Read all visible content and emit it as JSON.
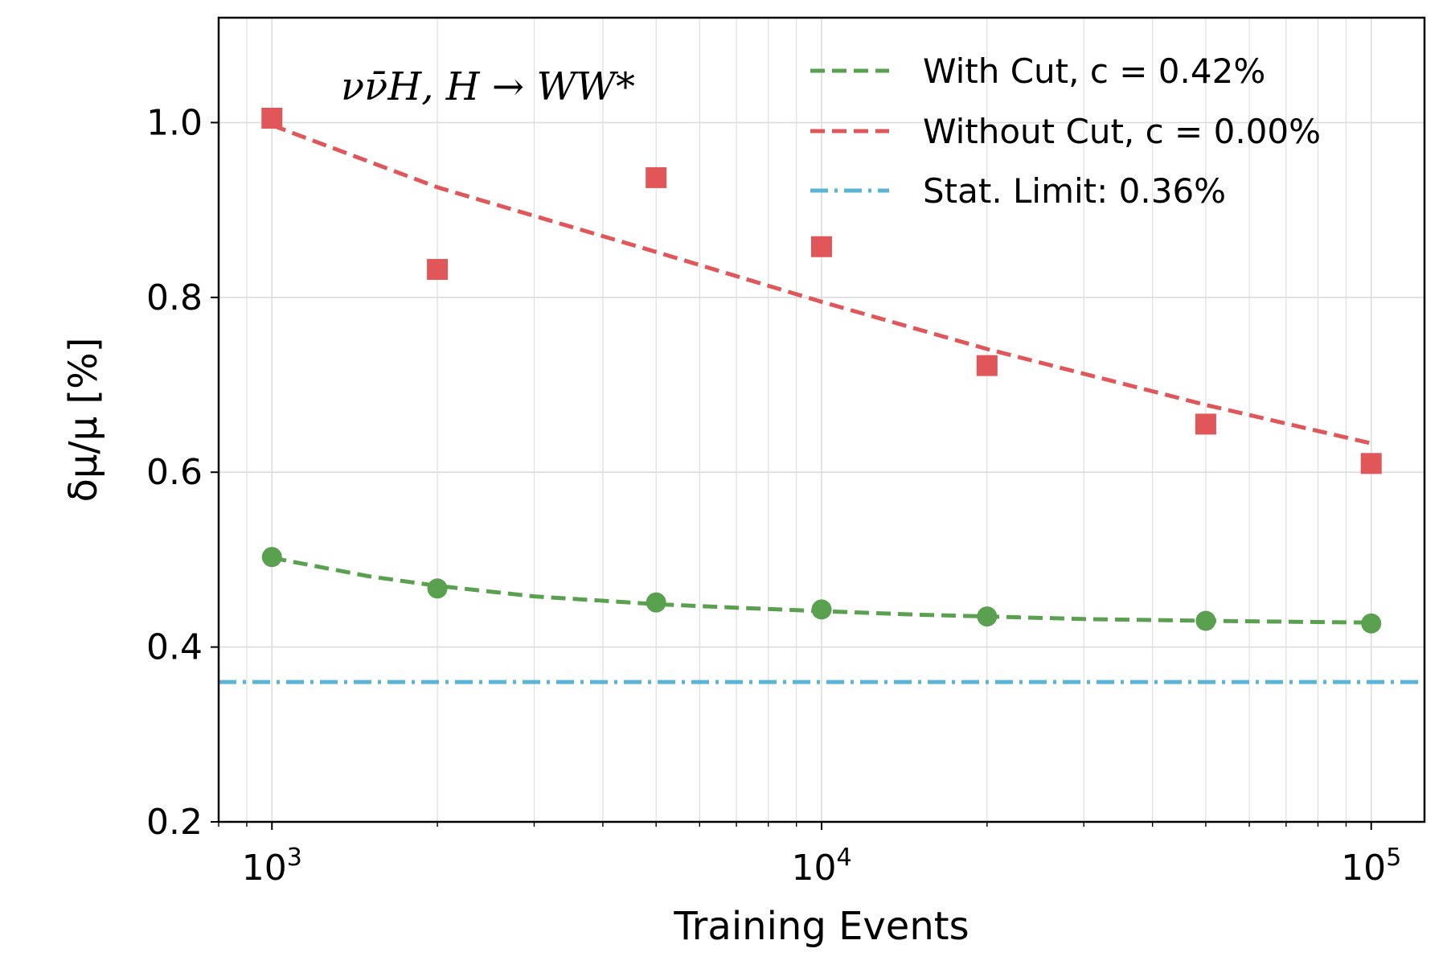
{
  "chart_data": {
    "type": "scatter",
    "title": "",
    "annotation": "νν̄H, H → WW*",
    "xlabel": "Training Events",
    "ylabel": "δμ/μ [%]",
    "xscale": "log",
    "xlim": [
      800,
      125000
    ],
    "ylim": [
      0.2,
      1.12
    ],
    "grid": true,
    "legend_position": "top-right",
    "x_ticks": [
      {
        "value": 1000,
        "base": "10",
        "exp": "3"
      },
      {
        "value": 10000,
        "base": "10",
        "exp": "4"
      },
      {
        "value": 100000,
        "base": "10",
        "exp": "5"
      }
    ],
    "y_ticks": [
      {
        "value": 0.2,
        "label": "0.2"
      },
      {
        "value": 0.4,
        "label": "0.4"
      },
      {
        "value": 0.6,
        "label": "0.6"
      },
      {
        "value": 0.8,
        "label": "0.8"
      },
      {
        "value": 1.0,
        "label": "1.0"
      }
    ],
    "series": [
      {
        "name": "With Cut",
        "legend_label": "With Cut, c = 0.42%",
        "color": "#59a14f",
        "marker": "circle",
        "x": [
          1000,
          2000,
          5000,
          10000,
          20000,
          50000,
          100000
        ],
        "y": [
          0.503,
          0.467,
          0.451,
          0.443,
          0.435,
          0.43,
          0.427
        ],
        "fit": {
          "style": "dashed",
          "x": [
            1000,
            1500,
            2000,
            3000,
            5000,
            7000,
            10000,
            15000,
            20000,
            30000,
            50000,
            70000,
            100000
          ],
          "y": [
            0.502,
            0.481,
            0.47,
            0.458,
            0.449,
            0.445,
            0.441,
            0.437,
            0.435,
            0.432,
            0.43,
            0.429,
            0.428
          ]
        }
      },
      {
        "name": "Without Cut",
        "legend_label": "Without Cut, c = 0.00%",
        "color": "#e15759",
        "marker": "square",
        "x": [
          1000,
          2000,
          5000,
          10000,
          20000,
          50000,
          100000
        ],
        "y": [
          1.005,
          0.832,
          0.937,
          0.858,
          0.722,
          0.655,
          0.61
        ],
        "fit": {
          "style": "dashed",
          "x": [
            1000,
            2000,
            5000,
            10000,
            20000,
            50000,
            100000
          ],
          "y": [
            0.997,
            0.926,
            0.852,
            0.795,
            0.741,
            0.677,
            0.633
          ]
        }
      }
    ],
    "reference_lines": [
      {
        "name": "Stat. Limit",
        "legend_label": "Stat. Limit: 0.36%",
        "color": "#5ab4d6",
        "style": "dash-dot",
        "y": 0.36
      }
    ]
  }
}
